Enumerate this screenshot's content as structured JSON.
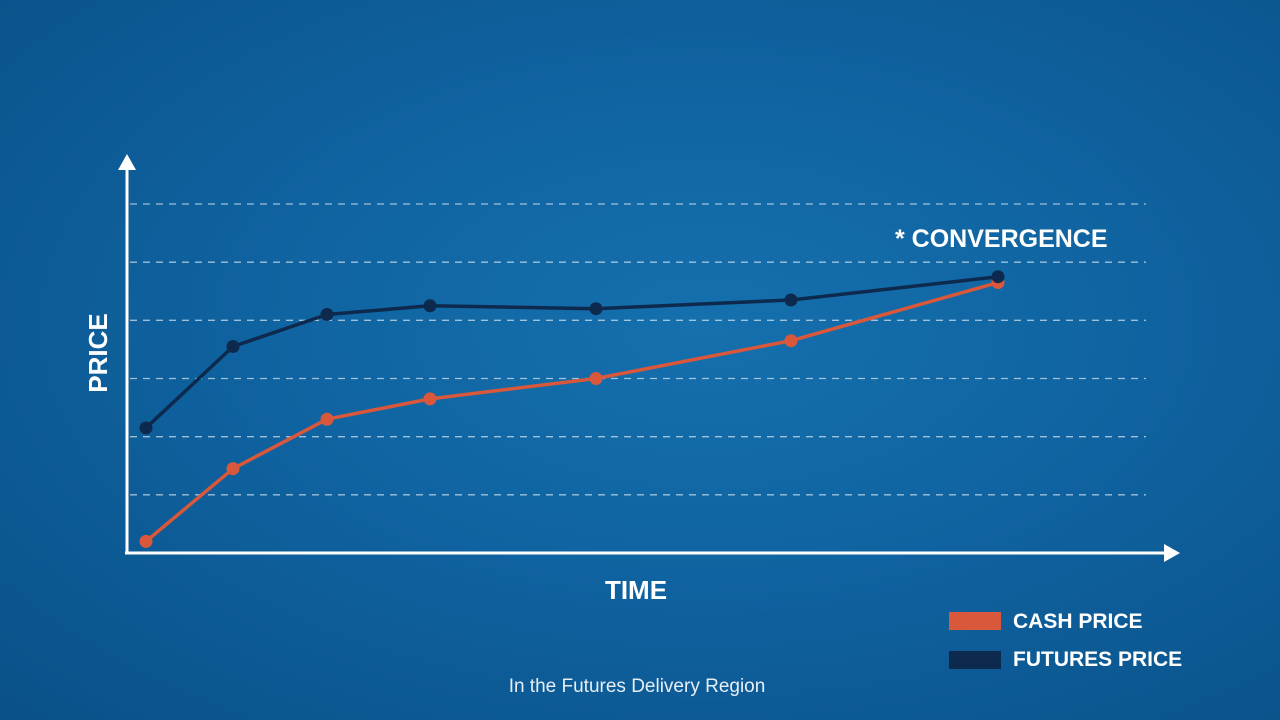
{
  "chart_data": {
    "type": "line",
    "title": "",
    "xlabel": "TIME",
    "ylabel": "PRICE",
    "grid": true,
    "ylim": [
      0,
      6
    ],
    "x": [
      0,
      1,
      2,
      3,
      4,
      5,
      6
    ],
    "series": [
      {
        "name": "CASH PRICE",
        "color": "#d9573b",
        "values": [
          0.2,
          1.45,
          2.3,
          2.65,
          3.0,
          3.65,
          4.65
        ]
      },
      {
        "name": "FUTURES PRICE",
        "color": "#0d2a4e",
        "values": [
          2.15,
          3.55,
          4.1,
          4.25,
          4.2,
          4.35,
          4.75
        ]
      }
    ],
    "annotation": "* CONVERGENCE",
    "legend_position": "bottom-right",
    "caption": "In the Futures Delivery Region"
  }
}
